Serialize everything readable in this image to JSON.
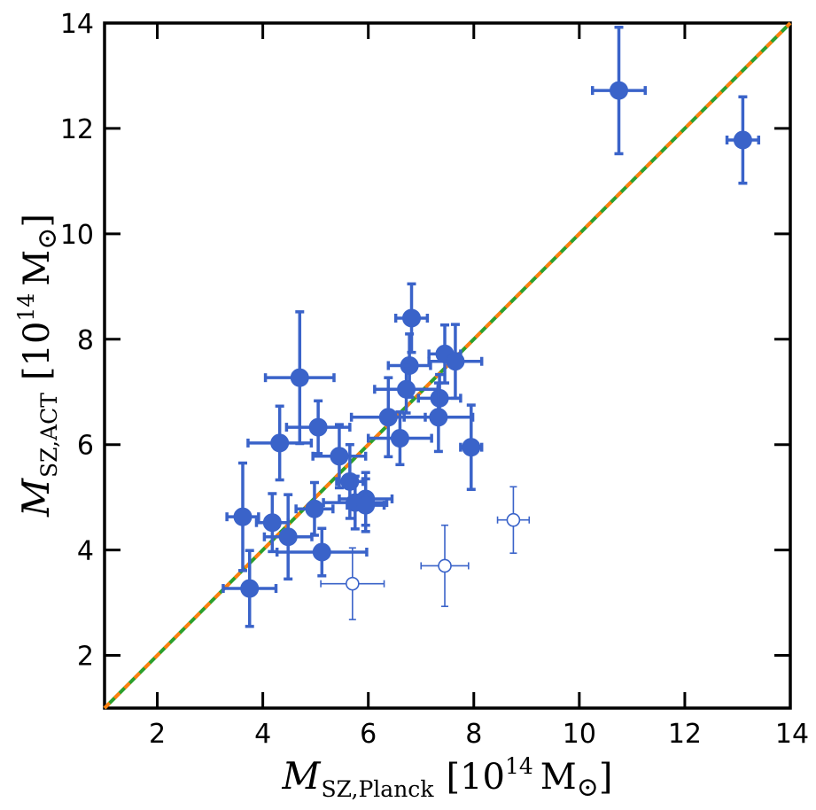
{
  "chart_data": {
    "type": "scatter",
    "xlabel": {
      "symbol": "M",
      "sub": "SZ,Planck",
      "unit": "[10",
      "exp": "14",
      "unit_end": "M",
      "sun": "⊙",
      "close": "]"
    },
    "ylabel": {
      "symbol": "M",
      "sub": "SZ,ACT",
      "unit": "[10",
      "exp": "14",
      "unit_end": "M",
      "sun": "⊙",
      "close": "]"
    },
    "xlim": [
      1,
      14
    ],
    "ylim": [
      1,
      14
    ],
    "xticks": [
      2,
      4,
      6,
      8,
      10,
      12,
      14
    ],
    "yticks": [
      2,
      4,
      6,
      8,
      10,
      12,
      14
    ],
    "reference_line": {
      "x": [
        1,
        14
      ],
      "y": [
        1,
        14
      ],
      "colors": [
        "#2ca02c",
        "#ff7f0e"
      ],
      "style": "one-to-one, dashed"
    },
    "series": [
      {
        "name": "filled",
        "marker": "filled-circle",
        "color": "#3a63c9",
        "points": [
          {
            "x": 10.75,
            "y": 12.72,
            "xerr": 0.5,
            "yerr": 1.2
          },
          {
            "x": 13.1,
            "y": 11.78,
            "xerr": 0.3,
            "yerr": 0.82
          },
          {
            "x": 6.82,
            "y": 8.4,
            "xerr": 0.3,
            "yerr": 0.65
          },
          {
            "x": 7.45,
            "y": 7.72,
            "xerr": 0.3,
            "yerr": 0.55
          },
          {
            "x": 7.65,
            "y": 7.58,
            "xerr": 0.5,
            "yerr": 0.7
          },
          {
            "x": 6.78,
            "y": 7.5,
            "xerr": 0.4,
            "yerr": 0.6
          },
          {
            "x": 4.7,
            "y": 7.27,
            "xerr": 0.65,
            "yerr": 1.25
          },
          {
            "x": 6.72,
            "y": 7.05,
            "xerr": 0.6,
            "yerr": 0.45
          },
          {
            "x": 7.35,
            "y": 6.88,
            "xerr": 0.4,
            "yerr": 0.45
          },
          {
            "x": 6.38,
            "y": 6.52,
            "xerr": 0.7,
            "yerr": 0.75
          },
          {
            "x": 7.33,
            "y": 6.52,
            "xerr": 0.65,
            "yerr": 0.65
          },
          {
            "x": 5.05,
            "y": 6.33,
            "xerr": 0.6,
            "yerr": 0.5
          },
          {
            "x": 6.6,
            "y": 6.12,
            "xerr": 0.6,
            "yerr": 0.5
          },
          {
            "x": 4.32,
            "y": 6.03,
            "xerr": 0.6,
            "yerr": 0.7
          },
          {
            "x": 7.95,
            "y": 5.95,
            "xerr": 0.2,
            "yerr": 0.8
          },
          {
            "x": 5.45,
            "y": 5.78,
            "xerr": 0.5,
            "yerr": 0.6
          },
          {
            "x": 5.65,
            "y": 5.3,
            "xerr": 0.25,
            "yerr": 0.7
          },
          {
            "x": 5.95,
            "y": 4.97,
            "xerr": 0.5,
            "yerr": 0.5
          },
          {
            "x": 5.75,
            "y": 4.9,
            "xerr": 0.6,
            "yerr": 0.5
          },
          {
            "x": 5.95,
            "y": 4.85,
            "xerr": 0.35,
            "yerr": 0.5
          },
          {
            "x": 4.98,
            "y": 4.78,
            "xerr": 0.35,
            "yerr": 0.5
          },
          {
            "x": 3.62,
            "y": 4.63,
            "xerr": 0.3,
            "yerr": 1.02
          },
          {
            "x": 4.18,
            "y": 4.52,
            "xerr": 0.3,
            "yerr": 0.55
          },
          {
            "x": 4.48,
            "y": 4.25,
            "xerr": 0.45,
            "yerr": 0.8
          },
          {
            "x": 5.12,
            "y": 3.96,
            "xerr": 0.85,
            "yerr": 0.45
          },
          {
            "x": 3.75,
            "y": 3.27,
            "xerr": 0.5,
            "yerr": 0.72
          }
        ]
      },
      {
        "name": "open",
        "marker": "open-circle",
        "color": "#3a63c9",
        "points": [
          {
            "x": 5.7,
            "y": 3.36,
            "xerr": 0.6,
            "yerr": 0.68
          },
          {
            "x": 7.45,
            "y": 3.7,
            "xerr": 0.45,
            "yerr": 0.77
          },
          {
            "x": 8.75,
            "y": 4.57,
            "xerr": 0.3,
            "yerr": 0.63
          }
        ]
      }
    ]
  }
}
